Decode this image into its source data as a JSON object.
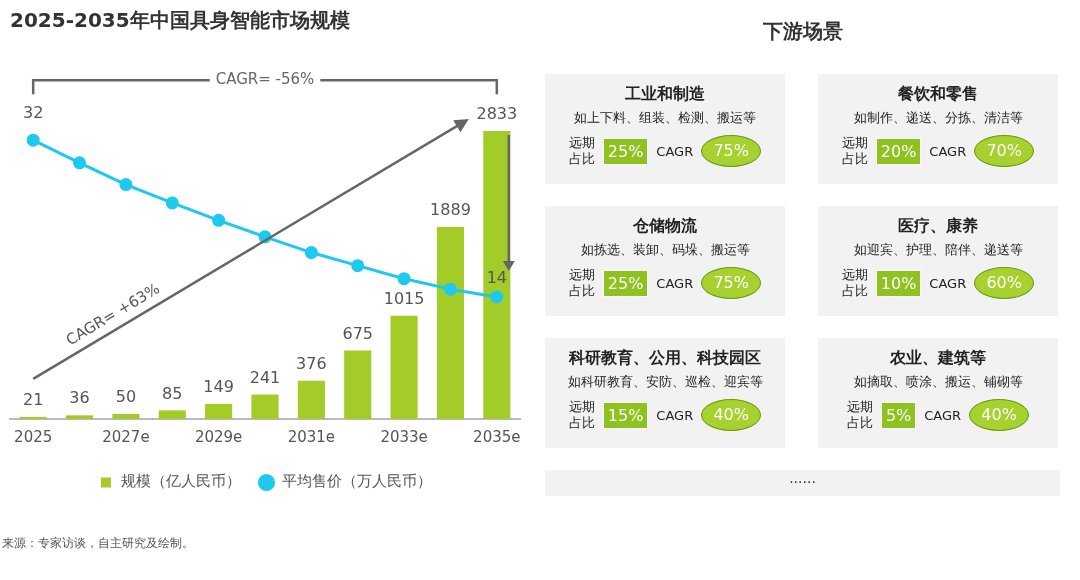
{
  "chart_data": [
    {
      "type": "bar",
      "title": "2025-2035年中国具身智能市场规模",
      "categories": [
        "2025",
        null,
        "2027e",
        null,
        "2029e",
        null,
        "2031e",
        null,
        "2033e",
        null,
        "2035e"
      ],
      "series": [
        {
          "name": "规模（亿人民币）",
          "type": "bar",
          "color": "#a3cc29",
          "values": [
            21,
            36,
            50,
            85,
            149,
            241,
            376,
            675,
            1015,
            1889,
            2833
          ],
          "value_labels": [
            "21",
            "36",
            "50",
            "85",
            "149",
            "241",
            "376",
            "675",
            "1015",
            "1889",
            "2833"
          ]
        },
        {
          "name": "平均售价（万人民币）",
          "type": "line",
          "axis": "y2",
          "color": "#1ec8ef",
          "marker": "circle",
          "values": [
            32,
            29.4,
            26.9,
            24.8,
            22.8,
            20.9,
            19.1,
            17.6,
            16.1,
            14.9,
            14
          ],
          "value_labels": [
            "32",
            null,
            null,
            null,
            null,
            null,
            null,
            null,
            null,
            null,
            "14"
          ]
        }
      ],
      "tick_labels": "x",
      "legend": "bottom",
      "annotations": [
        "CAGR= -56%",
        "CAGR= +63%",
        "来源：专家访谈，自主研究及绘制。"
      ]
    },
    {
      "type": "other",
      "title": "下游场景",
      "categories": [
        "工业和制造",
        "餐饮和零售",
        "仓储物流",
        "医疗、康养",
        "科研教育、公用、科技园区",
        "农业、建筑等"
      ],
      "series": [
        {
          "name": "远期占比",
          "color": "#8dc21f",
          "values": [
            25,
            20,
            25,
            10,
            15,
            5
          ],
          "value_labels": [
            "25%",
            "20%",
            "25%",
            "10%",
            "15%",
            "5%"
          ]
        },
        {
          "name": "CAGR",
          "color": "#a6d12e",
          "values": [
            75,
            70,
            75,
            60,
            40,
            40
          ],
          "value_labels": [
            "75%",
            "70%",
            "75%",
            "60%",
            "40%",
            "40%"
          ]
        }
      ],
      "annotations": [
        "如上下料、组装、检测、搬运等",
        "如制作、递送、分拣、清洁等",
        "如拣选、装卸、码垛、搬运等",
        "如迎宾、护理、陪伴、递送等",
        "如科研教育、安防、巡检、迎宾等",
        "如摘取、喷涂、搬运、铺砌等",
        "......"
      ]
    }
  ]
}
